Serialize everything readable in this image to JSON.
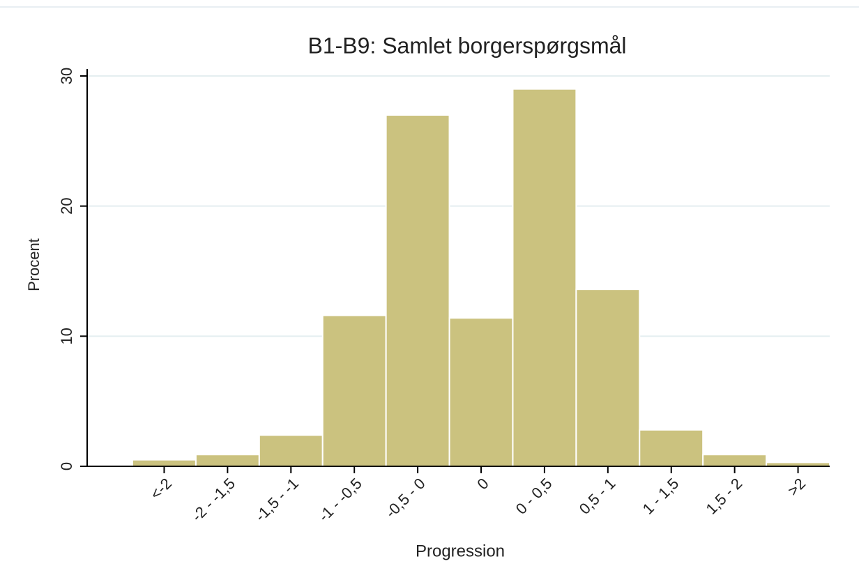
{
  "chart_data": {
    "type": "bar",
    "title": "B1-B9: Samlet borgerspørgsmål",
    "x_label": "Progression",
    "y_label": "Procent",
    "categories": [
      "<-2",
      "-2 - -1,5",
      "-1,5 - -1",
      "-1 - -0,5",
      "-0,5 - 0",
      "0",
      "0 - 0,5",
      "0,5 - 1",
      "1 - 1,5",
      "1,5 - 2",
      ">2"
    ],
    "values": [
      0.5,
      0.9,
      2.4,
      11.6,
      27.0,
      11.4,
      29.0,
      13.6,
      2.8,
      0.9,
      0.3
    ],
    "color": "#cbc27f",
    "ylim": [
      0,
      30
    ],
    "yticks": [
      0,
      10,
      20,
      30
    ],
    "grid": true
  }
}
